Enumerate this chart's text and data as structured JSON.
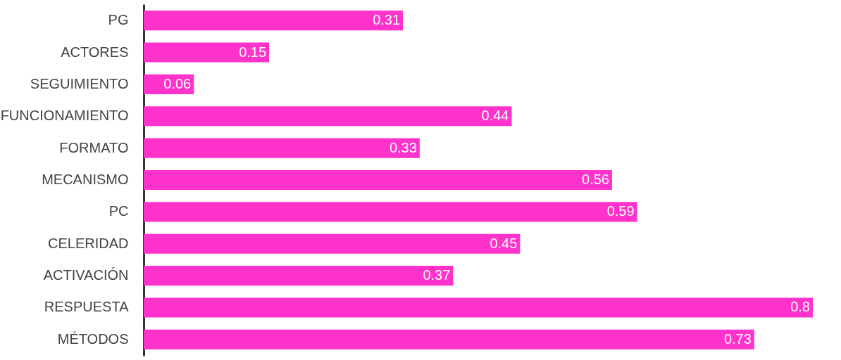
{
  "chart_data": {
    "type": "bar",
    "orientation": "horizontal",
    "data_labels": true,
    "tick_labels": "y",
    "categories": [
      "PG",
      "ACTORES",
      "SEGUIMIENTO",
      "FUNCIONAMIENTO",
      "FORMATO",
      "MECANISMO",
      "PC",
      "CELERIDAD",
      "ACTIVACIÓN",
      "RESPUESTA",
      "MÉTODOS"
    ],
    "values": [
      0.31,
      0.15,
      0.06,
      0.44,
      0.33,
      0.56,
      0.59,
      0.45,
      0.37,
      0.8,
      0.73
    ],
    "color": "#ff33cc",
    "xlim": [
      0,
      0.8
    ]
  }
}
